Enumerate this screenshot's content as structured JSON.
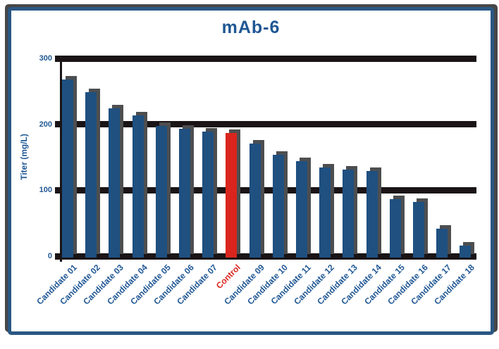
{
  "chart_data": {
    "type": "bar",
    "title": "mAb-6",
    "xlabel": "",
    "ylabel": "Titer (mg/L)",
    "ylim": [
      0,
      300
    ],
    "yticks": [
      300,
      200,
      100,
      0
    ],
    "grid": "horizontal-thick",
    "legend": "none",
    "categories": [
      "Candidate 01",
      "Candidate 02",
      "Candidate 03",
      "Candidate 04",
      "Candidate 05",
      "Candidate 06",
      "Candidate 07",
      "Control",
      "Candidate 09",
      "Candidate 10",
      "Candidate 11",
      "Candidate 12",
      "Candidate 13",
      "Candidate 14",
      "Candidate 15",
      "Candidate 16",
      "Candidate 17",
      "Candidate 18"
    ],
    "values": [
      270,
      251,
      226,
      216,
      200,
      195,
      191,
      189,
      173,
      156,
      146,
      137,
      133,
      131,
      89,
      84,
      44,
      18
    ],
    "highlight_index": 7,
    "colors": {
      "bar": "#1f5080",
      "highlight_bar": "#d9251d",
      "bar_shadow": "#4d4e50",
      "gridline": "#1a1416",
      "text_blue": "#1f5794",
      "frame_border": "#2a5783",
      "frame_shadow": "#474747"
    }
  }
}
